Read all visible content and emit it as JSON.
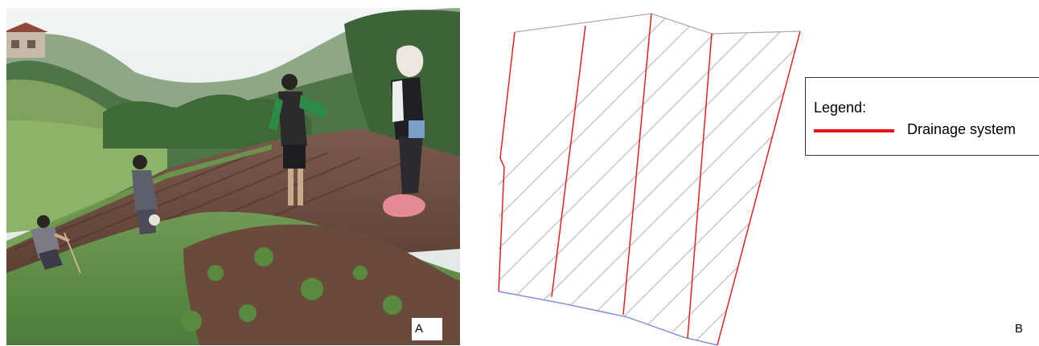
{
  "panel_a": {
    "label": "A"
  },
  "panel_b": {
    "label": "B",
    "legend": {
      "title": "Legend:",
      "items": [
        {
          "label": "Drainage system",
          "color": "#ee1111"
        }
      ]
    },
    "colors": {
      "drainage": "#ee1111",
      "lower_boundary": "#7788dd",
      "upper_boundary": "#aaaaaa",
      "hatch": "#b0b0b0"
    }
  }
}
